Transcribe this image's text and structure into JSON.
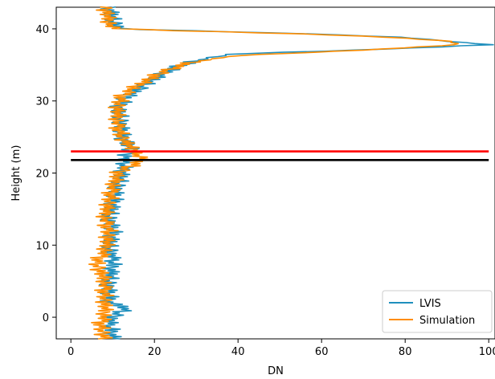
{
  "chart_data": {
    "type": "line",
    "xlabel": "DN",
    "ylabel": "Height (m)",
    "xlim": [
      -3.5,
      101.5
    ],
    "ylim": [
      -3,
      43
    ],
    "xticks": [
      0,
      20,
      40,
      60,
      80,
      100
    ],
    "yticks": [
      0,
      10,
      20,
      30,
      40
    ],
    "xtick_labels": [
      "0",
      "20",
      "40",
      "60",
      "80",
      "100"
    ],
    "ytick_labels": [
      "0",
      "10",
      "20",
      "30",
      "40"
    ],
    "legend_position": "bottom-right",
    "series": [
      {
        "name": "LVIS",
        "color": "#1f8fbd",
        "height_start": -3,
        "height_step": 0.15,
        "keypoints": [
          [
            -3,
            10
          ],
          [
            -1,
            9
          ],
          [
            0,
            10
          ],
          [
            1.3,
            13
          ],
          [
            2,
            9
          ],
          [
            5,
            9
          ],
          [
            8,
            10
          ],
          [
            10,
            9
          ],
          [
            12,
            10
          ],
          [
            14,
            9
          ],
          [
            16,
            10
          ],
          [
            18,
            11
          ],
          [
            20,
            12
          ],
          [
            22,
            13
          ],
          [
            23.5,
            14
          ],
          [
            25,
            12
          ],
          [
            27,
            12
          ],
          [
            29,
            11
          ],
          [
            30.5,
            13
          ],
          [
            31.5,
            16
          ],
          [
            32.5,
            18
          ],
          [
            33.5,
            21
          ],
          [
            34.5,
            24
          ],
          [
            35.5,
            29
          ],
          [
            36.5,
            38
          ],
          [
            37,
            65
          ],
          [
            37.3,
            80
          ],
          [
            37.8,
            100
          ],
          [
            38.3,
            90
          ],
          [
            38.8,
            80
          ],
          [
            39.3,
            58
          ],
          [
            39.7,
            30
          ],
          [
            40,
            12
          ],
          [
            41,
            10
          ],
          [
            43,
            9
          ]
        ],
        "noise": [
          1.8,
          -1.4,
          2.2,
          -0.6,
          1.1,
          -2.0,
          0.4,
          1.7,
          -1.2,
          2.5,
          -0.8,
          0.3,
          -1.9,
          1.5,
          -0.2,
          2.1,
          -1.6,
          0.9,
          -0.5,
          1.3,
          -2.2,
          0.7,
          1.9,
          -1.1,
          0.2,
          -1.7,
          2.4,
          -0.3,
          1.0,
          -1.5
        ]
      },
      {
        "name": "Simulation",
        "color": "#ff8c00",
        "height_start": -3,
        "height_step": 0.15,
        "keypoints": [
          [
            -3,
            8
          ],
          [
            -1,
            7
          ],
          [
            0,
            8
          ],
          [
            2,
            8
          ],
          [
            5,
            8
          ],
          [
            7.5,
            6
          ],
          [
            9,
            8
          ],
          [
            12,
            9
          ],
          [
            14,
            8
          ],
          [
            16,
            9
          ],
          [
            18,
            10
          ],
          [
            20,
            11
          ],
          [
            21.8,
            17
          ],
          [
            23,
            15
          ],
          [
            25,
            12
          ],
          [
            27,
            11
          ],
          [
            29,
            11
          ],
          [
            30.5,
            12
          ],
          [
            31.5,
            14
          ],
          [
            32.5,
            17
          ],
          [
            33.5,
            20
          ],
          [
            34.5,
            24
          ],
          [
            35.5,
            30
          ],
          [
            36.3,
            40
          ],
          [
            36.8,
            60
          ],
          [
            37.3,
            78
          ],
          [
            37.8,
            92
          ],
          [
            38.2,
            92
          ],
          [
            38.8,
            78
          ],
          [
            39.3,
            55
          ],
          [
            39.7,
            30
          ],
          [
            40,
            10
          ],
          [
            41,
            9
          ],
          [
            43,
            8
          ]
        ],
        "noise": [
          -1.5,
          2.0,
          -0.7,
          1.4,
          -2.1,
          0.6,
          1.8,
          -1.0,
          0.3,
          -1.8,
          2.3,
          -0.4,
          1.2,
          -1.6,
          0.8,
          -2.3,
          1.6,
          -0.1,
          2.0,
          -1.3,
          0.5,
          -0.9,
          1.7,
          -2.0,
          0.1,
          1.3,
          -1.4,
          2.2,
          -0.6,
          0.9
        ]
      }
    ],
    "hlines": [
      {
        "y": 23.0,
        "x_range": [
          0,
          100
        ],
        "color": "#ff0000"
      },
      {
        "y": 21.8,
        "x_range": [
          0,
          100
        ],
        "color": "#000000"
      }
    ]
  }
}
